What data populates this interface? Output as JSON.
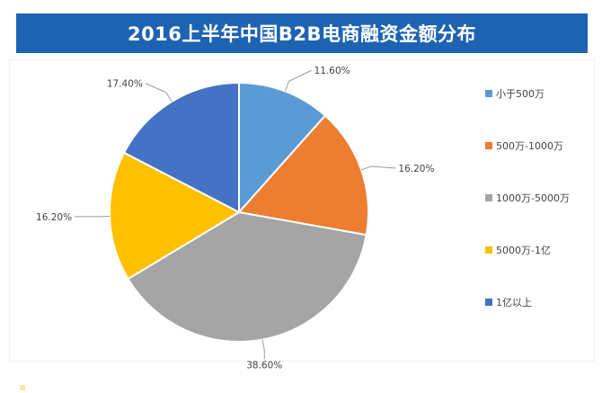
{
  "title": "2016上半年中国B2B电商融资金额分布",
  "chart_data": {
    "type": "pie",
    "title": "2016上半年中国B2B电商融资金额分布",
    "categories": [
      "小于500万",
      "500万-1000万",
      "1000万-5000万",
      "5000万-1亿",
      "1亿以上"
    ],
    "values": [
      11.6,
      16.2,
      38.6,
      16.2,
      17.4
    ],
    "data_labels": [
      "11.60%",
      "16.20%",
      "38.60%",
      "16.20%",
      "17.40%"
    ],
    "colors": [
      "#5b9bd5",
      "#ed7d31",
      "#a5a5a5",
      "#ffc000",
      "#4472c4"
    ],
    "start_angle_deg": 0,
    "direction": "clockwise",
    "legend_position": "right"
  }
}
